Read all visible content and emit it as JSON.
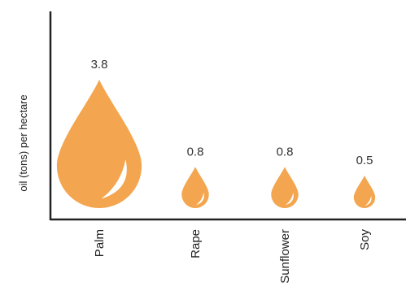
{
  "chart_data": {
    "type": "bar",
    "title": "",
    "xlabel": "",
    "ylabel": "oil (tons) per hectare",
    "categories": [
      "Palm",
      "Rape",
      "Sunflower",
      "Soy"
    ],
    "values": [
      3.8,
      0.8,
      0.8,
      0.5
    ],
    "value_labels": [
      "3.8",
      "0.8",
      "0.8",
      "0.5"
    ],
    "marker": "oil-drop",
    "grid": false,
    "legend": "none",
    "colors": {
      "drop": "#F3A64F",
      "highlight": "#FFFFFF",
      "axis": "#222222"
    }
  }
}
